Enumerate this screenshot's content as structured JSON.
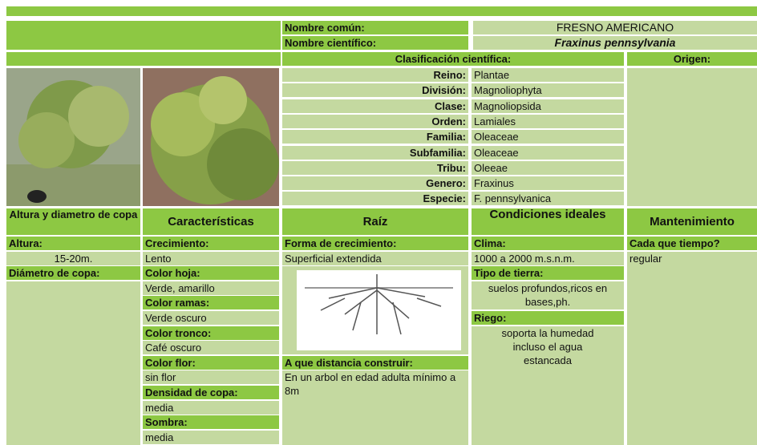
{
  "header": {
    "common_name_label": "Nombre común:",
    "common_name": "FRESNO AMERICANO",
    "scientific_name_label": "Nombre científico:",
    "scientific_name": "Fraxinus pennsylvania"
  },
  "classification": {
    "title": "Clasificación científica:",
    "rows": [
      [
        "Reino:",
        "Plantae"
      ],
      [
        "División:",
        "Magnoliophyta"
      ],
      [
        "Clase:",
        "Magnoliopsida"
      ],
      [
        "Orden:",
        "Lamiales"
      ],
      [
        "Familia:",
        "Oleaceae"
      ],
      [
        "Subfamilia:",
        "Oleaceae"
      ],
      [
        "Tribu:",
        "Oleeae"
      ],
      [
        "Genero:",
        "Fraxinus"
      ],
      [
        "Especie:",
        "F. pennsylvanica"
      ]
    ]
  },
  "origin": {
    "title": "Origen:"
  },
  "sections": [
    {
      "title": "Altura y diametro de copa",
      "items": [
        "Altura:",
        "15-20m.",
        "Diámetro de copa:"
      ]
    },
    {
      "title": "Características",
      "items": [
        "Crecimiento:",
        "Lento",
        "Color hoja:",
        "Verde, amarillo",
        "Color ramas:",
        "Verde oscuro",
        "Color tronco:",
        "Café oscuro",
        "Color flor:",
        "sin flor",
        "Densidad de copa:",
        "media",
        "Sombra:",
        "media"
      ]
    },
    {
      "title": "Raíz",
      "items": [
        "Forma de crecimiento:",
        "Superficial extendida",
        "A que distancia construir:",
        "En un arbol en edad adulta mínimo a 8m"
      ]
    },
    {
      "title": "Condiciones ideales",
      "items": [
        "Clima:",
        "1000 a 2000 m.s.n.m.",
        "Tipo de tierra:",
        "suelos profundos,ricos en bases,ph.",
        "Riego:",
        "soporta la humedad incluso el agua estancada"
      ]
    },
    {
      "title": "Mantenimiento",
      "items": [
        "Cada que tiempo?",
        "regular"
      ]
    }
  ]
}
